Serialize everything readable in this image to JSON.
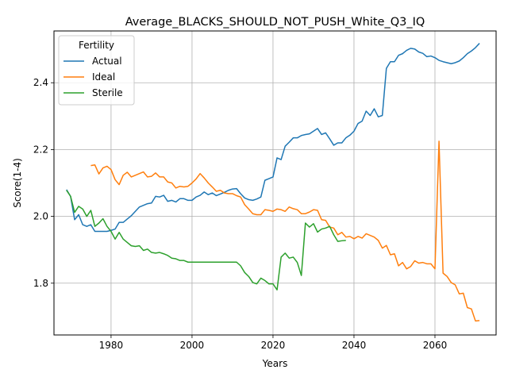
{
  "chart_data": {
    "type": "line",
    "title": "Average_BLACKS_SHOULD_NOT_PUSH_White_Q3_IQ",
    "xlabel": "Years",
    "ylabel": "Score(1-4)",
    "xlim": [
      1965.9,
      2075.1
    ],
    "ylim": [
      1.645,
      2.555
    ],
    "xticks": [
      1980,
      2000,
      2020,
      2040,
      2060
    ],
    "yticks": [
      1.8,
      2.0,
      2.2,
      2.4
    ],
    "ytick_labels": [
      "1.8",
      "2.0",
      "2.2",
      "2.4"
    ],
    "grid": true,
    "legend": {
      "title": "Fertility",
      "placement": "top-left"
    },
    "series": [
      {
        "name": "Actual",
        "color": "#1f77b4",
        "points": [
          [
            1969,
            2.08
          ],
          [
            1970,
            2.06
          ],
          [
            1971,
            1.99
          ],
          [
            1972,
            2.005
          ],
          [
            1973,
            1.975
          ],
          [
            1974,
            1.97
          ],
          [
            1975,
            1.975
          ],
          [
            1976,
            1.955
          ],
          [
            1977,
            1.955
          ],
          [
            1978,
            1.955
          ],
          [
            1979,
            1.955
          ],
          [
            1980,
            1.958
          ],
          [
            1981,
            1.962
          ],
          [
            1982,
            1.982
          ],
          [
            1983,
            1.982
          ],
          [
            1984,
            1.992
          ],
          [
            1985,
            2.002
          ],
          [
            1986,
            2.015
          ],
          [
            1987,
            2.028
          ],
          [
            1988,
            2.033
          ],
          [
            1989,
            2.038
          ],
          [
            1990,
            2.04
          ],
          [
            1991,
            2.06
          ],
          [
            1992,
            2.058
          ],
          [
            1993,
            2.063
          ],
          [
            1994,
            2.045
          ],
          [
            1995,
            2.048
          ],
          [
            1996,
            2.043
          ],
          [
            1997,
            2.053
          ],
          [
            1998,
            2.053
          ],
          [
            1999,
            2.048
          ],
          [
            2000,
            2.048
          ],
          [
            2001,
            2.058
          ],
          [
            2002,
            2.063
          ],
          [
            2003,
            2.073
          ],
          [
            2004,
            2.065
          ],
          [
            2005,
            2.07
          ],
          [
            2006,
            2.062
          ],
          [
            2007,
            2.067
          ],
          [
            2008,
            2.072
          ],
          [
            2009,
            2.078
          ],
          [
            2010,
            2.082
          ],
          [
            2011,
            2.083
          ],
          [
            2012,
            2.068
          ],
          [
            2013,
            2.055
          ],
          [
            2014,
            2.05
          ],
          [
            2015,
            2.048
          ],
          [
            2016,
            2.052
          ],
          [
            2017,
            2.058
          ],
          [
            2018,
            2.108
          ],
          [
            2019,
            2.113
          ],
          [
            2020,
            2.118
          ],
          [
            2021,
            2.175
          ],
          [
            2022,
            2.17
          ],
          [
            2023,
            2.21
          ],
          [
            2024,
            2.222
          ],
          [
            2025,
            2.235
          ],
          [
            2026,
            2.235
          ],
          [
            2027,
            2.242
          ],
          [
            2028,
            2.245
          ],
          [
            2029,
            2.247
          ],
          [
            2030,
            2.255
          ],
          [
            2031,
            2.263
          ],
          [
            2032,
            2.245
          ],
          [
            2033,
            2.25
          ],
          [
            2034,
            2.232
          ],
          [
            2035,
            2.213
          ],
          [
            2036,
            2.22
          ],
          [
            2037,
            2.22
          ],
          [
            2038,
            2.235
          ],
          [
            2039,
            2.243
          ],
          [
            2040,
            2.255
          ],
          [
            2041,
            2.278
          ],
          [
            2042,
            2.285
          ],
          [
            2043,
            2.315
          ],
          [
            2044,
            2.302
          ],
          [
            2045,
            2.322
          ],
          [
            2046,
            2.298
          ],
          [
            2047,
            2.302
          ],
          [
            2048,
            2.443
          ],
          [
            2049,
            2.463
          ],
          [
            2050,
            2.463
          ],
          [
            2051,
            2.482
          ],
          [
            2052,
            2.487
          ],
          [
            2053,
            2.497
          ],
          [
            2054,
            2.503
          ],
          [
            2055,
            2.501
          ],
          [
            2056,
            2.492
          ],
          [
            2057,
            2.488
          ],
          [
            2058,
            2.478
          ],
          [
            2059,
            2.48
          ],
          [
            2060,
            2.475
          ],
          [
            2061,
            2.467
          ],
          [
            2062,
            2.463
          ],
          [
            2063,
            2.46
          ],
          [
            2064,
            2.457
          ],
          [
            2065,
            2.46
          ],
          [
            2066,
            2.465
          ],
          [
            2067,
            2.475
          ],
          [
            2068,
            2.487
          ],
          [
            2069,
            2.495
          ],
          [
            2070,
            2.505
          ],
          [
            2071,
            2.518
          ]
        ]
      },
      {
        "name": "Ideal",
        "color": "#ff7f0e",
        "points": [
          [
            1975,
            2.152
          ],
          [
            1976,
            2.154
          ],
          [
            1977,
            2.127
          ],
          [
            1978,
            2.145
          ],
          [
            1979,
            2.15
          ],
          [
            1980,
            2.14
          ],
          [
            1981,
            2.11
          ],
          [
            1982,
            2.095
          ],
          [
            1983,
            2.123
          ],
          [
            1984,
            2.132
          ],
          [
            1985,
            2.118
          ],
          [
            1986,
            2.123
          ],
          [
            1987,
            2.128
          ],
          [
            1988,
            2.133
          ],
          [
            1989,
            2.118
          ],
          [
            1990,
            2.12
          ],
          [
            1991,
            2.13
          ],
          [
            1992,
            2.118
          ],
          [
            1993,
            2.118
          ],
          [
            1994,
            2.103
          ],
          [
            1995,
            2.1
          ],
          [
            1996,
            2.085
          ],
          [
            1997,
            2.09
          ],
          [
            1998,
            2.088
          ],
          [
            1999,
            2.09
          ],
          [
            2000,
            2.1
          ],
          [
            2001,
            2.112
          ],
          [
            2002,
            2.128
          ],
          [
            2003,
            2.115
          ],
          [
            2004,
            2.1
          ],
          [
            2005,
            2.088
          ],
          [
            2006,
            2.075
          ],
          [
            2007,
            2.078
          ],
          [
            2008,
            2.07
          ],
          [
            2009,
            2.068
          ],
          [
            2010,
            2.068
          ],
          [
            2011,
            2.062
          ],
          [
            2012,
            2.058
          ],
          [
            2013,
            2.035
          ],
          [
            2014,
            2.022
          ],
          [
            2015,
            2.008
          ],
          [
            2016,
            2.005
          ],
          [
            2017,
            2.005
          ],
          [
            2018,
            2.02
          ],
          [
            2019,
            2.018
          ],
          [
            2020,
            2.015
          ],
          [
            2021,
            2.022
          ],
          [
            2022,
            2.02
          ],
          [
            2023,
            2.015
          ],
          [
            2024,
            2.028
          ],
          [
            2025,
            2.023
          ],
          [
            2026,
            2.02
          ],
          [
            2027,
            2.008
          ],
          [
            2028,
            2.008
          ],
          [
            2029,
            2.013
          ],
          [
            2030,
            2.02
          ],
          [
            2031,
            2.018
          ],
          [
            2032,
            1.99
          ],
          [
            2033,
            1.988
          ],
          [
            2034,
            1.968
          ],
          [
            2035,
            1.965
          ],
          [
            2036,
            1.945
          ],
          [
            2037,
            1.952
          ],
          [
            2038,
            1.938
          ],
          [
            2039,
            1.94
          ],
          [
            2040,
            1.933
          ],
          [
            2041,
            1.94
          ],
          [
            2042,
            1.935
          ],
          [
            2043,
            1.948
          ],
          [
            2044,
            1.943
          ],
          [
            2045,
            1.938
          ],
          [
            2046,
            1.928
          ],
          [
            2047,
            1.905
          ],
          [
            2048,
            1.913
          ],
          [
            2049,
            1.885
          ],
          [
            2050,
            1.888
          ],
          [
            2051,
            1.852
          ],
          [
            2052,
            1.862
          ],
          [
            2053,
            1.843
          ],
          [
            2054,
            1.85
          ],
          [
            2055,
            1.867
          ],
          [
            2056,
            1.86
          ],
          [
            2057,
            1.862
          ],
          [
            2058,
            1.858
          ],
          [
            2059,
            1.858
          ],
          [
            2060,
            1.843
          ],
          [
            2061,
            2.225
          ],
          [
            2062,
            1.83
          ],
          [
            2063,
            1.82
          ],
          [
            2064,
            1.802
          ],
          [
            2065,
            1.795
          ],
          [
            2066,
            1.768
          ],
          [
            2067,
            1.77
          ],
          [
            2068,
            1.727
          ],
          [
            2069,
            1.723
          ],
          [
            2070,
            1.687
          ],
          [
            2071,
            1.688
          ]
        ]
      },
      {
        "name": "Sterile",
        "color": "#2ca02c",
        "points": [
          [
            1969,
            2.078
          ],
          [
            1970,
            2.06
          ],
          [
            1971,
            2.012
          ],
          [
            1972,
            2.03
          ],
          [
            1973,
            2.022
          ],
          [
            1974,
            2.0
          ],
          [
            1975,
            2.018
          ],
          [
            1976,
            1.97
          ],
          [
            1977,
            1.98
          ],
          [
            1978,
            1.993
          ],
          [
            1979,
            1.97
          ],
          [
            1980,
            1.955
          ],
          [
            1981,
            1.932
          ],
          [
            1982,
            1.952
          ],
          [
            1983,
            1.932
          ],
          [
            1984,
            1.922
          ],
          [
            1985,
            1.912
          ],
          [
            1986,
            1.91
          ],
          [
            1987,
            1.912
          ],
          [
            1988,
            1.898
          ],
          [
            1989,
            1.902
          ],
          [
            1990,
            1.892
          ],
          [
            1991,
            1.89
          ],
          [
            1992,
            1.892
          ],
          [
            1993,
            1.888
          ],
          [
            1994,
            1.883
          ],
          [
            1995,
            1.875
          ],
          [
            1996,
            1.873
          ],
          [
            1997,
            1.868
          ],
          [
            1998,
            1.868
          ],
          [
            1999,
            1.863
          ],
          [
            2000,
            1.863
          ],
          [
            2001,
            1.863
          ],
          [
            2002,
            1.863
          ],
          [
            2003,
            1.863
          ],
          [
            2004,
            1.863
          ],
          [
            2005,
            1.863
          ],
          [
            2006,
            1.863
          ],
          [
            2007,
            1.863
          ],
          [
            2008,
            1.863
          ],
          [
            2009,
            1.863
          ],
          [
            2010,
            1.863
          ],
          [
            2011,
            1.863
          ],
          [
            2012,
            1.852
          ],
          [
            2013,
            1.832
          ],
          [
            2014,
            1.82
          ],
          [
            2015,
            1.802
          ],
          [
            2016,
            1.798
          ],
          [
            2017,
            1.815
          ],
          [
            2018,
            1.808
          ],
          [
            2019,
            1.798
          ],
          [
            2020,
            1.798
          ],
          [
            2021,
            1.78
          ],
          [
            2022,
            1.878
          ],
          [
            2023,
            1.89
          ],
          [
            2024,
            1.875
          ],
          [
            2025,
            1.878
          ],
          [
            2026,
            1.862
          ],
          [
            2027,
            1.823
          ],
          [
            2028,
            1.98
          ],
          [
            2029,
            1.968
          ],
          [
            2030,
            1.978
          ],
          [
            2031,
            1.953
          ],
          [
            2032,
            1.962
          ],
          [
            2033,
            1.965
          ],
          [
            2034,
            1.97
          ],
          [
            2035,
            1.945
          ],
          [
            2036,
            1.925
          ],
          [
            2037,
            1.927
          ],
          [
            2038,
            1.928
          ]
        ]
      }
    ]
  }
}
